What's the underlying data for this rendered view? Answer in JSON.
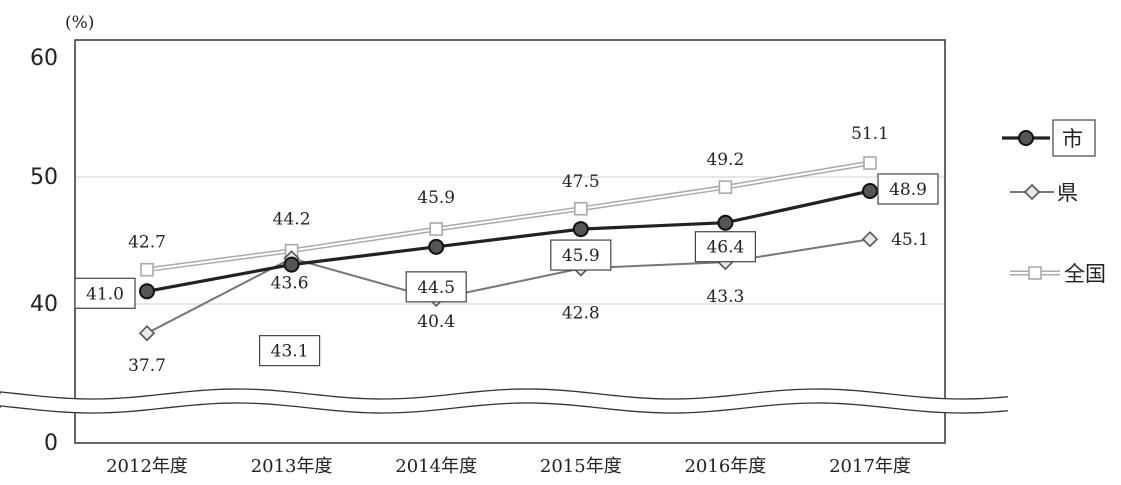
{
  "chart_data": {
    "type": "line",
    "title": "",
    "ylabel": "(%)",
    "xlabel": "",
    "categories": [
      "2012年度",
      "2013年度",
      "2014年度",
      "2015年度",
      "2016年度",
      "2017年度"
    ],
    "yticks": [
      "60",
      "50",
      "40",
      "0"
    ],
    "ylim": [
      0,
      60
    ],
    "axis_break": {
      "from": 0,
      "to": 40
    },
    "grid": true,
    "legend_position": "right",
    "series": [
      {
        "name": "市",
        "values": [
          41.0,
          43.1,
          44.5,
          45.9,
          46.4,
          48.9
        ],
        "labels": [
          "41.0",
          "43.1",
          "44.5",
          "45.9",
          "46.4",
          "48.9"
        ],
        "marker": "circle",
        "color": "#3a3a3a",
        "boxed_labels": true,
        "legend_boxed": true
      },
      {
        "name": "県",
        "values": [
          37.7,
          43.6,
          40.4,
          42.8,
          43.3,
          45.1
        ],
        "labels": [
          "37.7",
          "43.6",
          "40.4",
          "42.8",
          "43.3",
          "45.1"
        ],
        "marker": "diamond",
        "color": "#777777",
        "boxed_labels": false,
        "legend_boxed": false
      },
      {
        "name": "全国",
        "values": [
          42.7,
          44.2,
          45.9,
          47.5,
          49.2,
          51.1
        ],
        "labels": [
          "42.7",
          "44.2",
          "45.9",
          "47.5",
          "49.2",
          "51.1"
        ],
        "marker": "square",
        "color": "#bbbbbb",
        "boxed_labels": false,
        "legend_boxed": false
      }
    ]
  }
}
